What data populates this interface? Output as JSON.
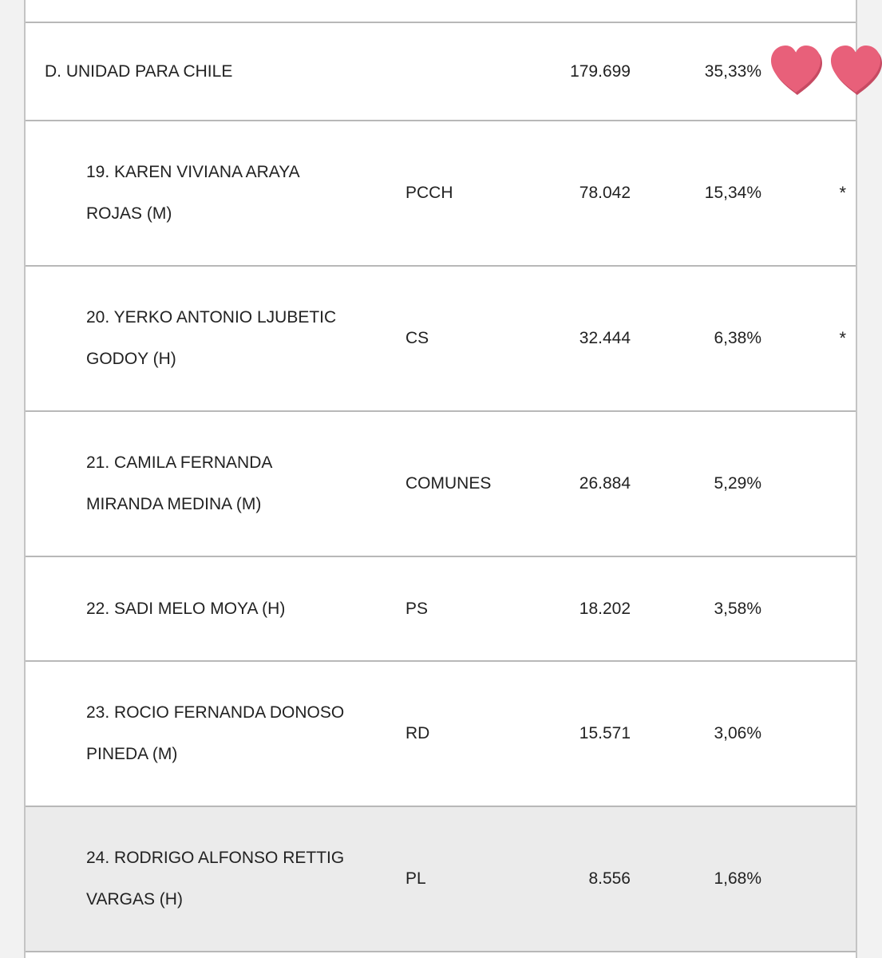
{
  "colors": {
    "heart": "#e8607a",
    "heart_shadow": "#c64a62",
    "row_border": "#b8b8b8",
    "shaded_row": "#ebebeb"
  },
  "coalition": {
    "name": "D. UNIDAD PARA CHILE",
    "votes": "179.699",
    "percent": "35,33%"
  },
  "decorations": [
    "heart-icon",
    "heart-icon"
  ],
  "candidates": [
    {
      "name": "19. KAREN VIVIANA ARAYA ROJAS (M)",
      "party": "PCCH",
      "votes": "78.042",
      "percent": "15,34%",
      "elected": "*"
    },
    {
      "name": "20. YERKO ANTONIO LJUBETIC GODOY (H)",
      "party": "CS",
      "votes": "32.444",
      "percent": "6,38%",
      "elected": "*"
    },
    {
      "name": "21. CAMILA FERNANDA MIRANDA MEDINA (M)",
      "party": "COMUNES",
      "votes": "26.884",
      "percent": "5,29%",
      "elected": ""
    },
    {
      "name": "22. SADI MELO MOYA (H)",
      "party": "PS",
      "votes": "18.202",
      "percent": "3,58%",
      "elected": ""
    },
    {
      "name": "23. ROCIO FERNANDA DONOSO PINEDA (M)",
      "party": "RD",
      "votes": "15.571",
      "percent": "3,06%",
      "elected": ""
    },
    {
      "name": "24. RODRIGO ALFONSO RETTIG VARGAS (H)",
      "party": "PL",
      "votes": "8.556",
      "percent": "1,68%",
      "elected": ""
    }
  ]
}
